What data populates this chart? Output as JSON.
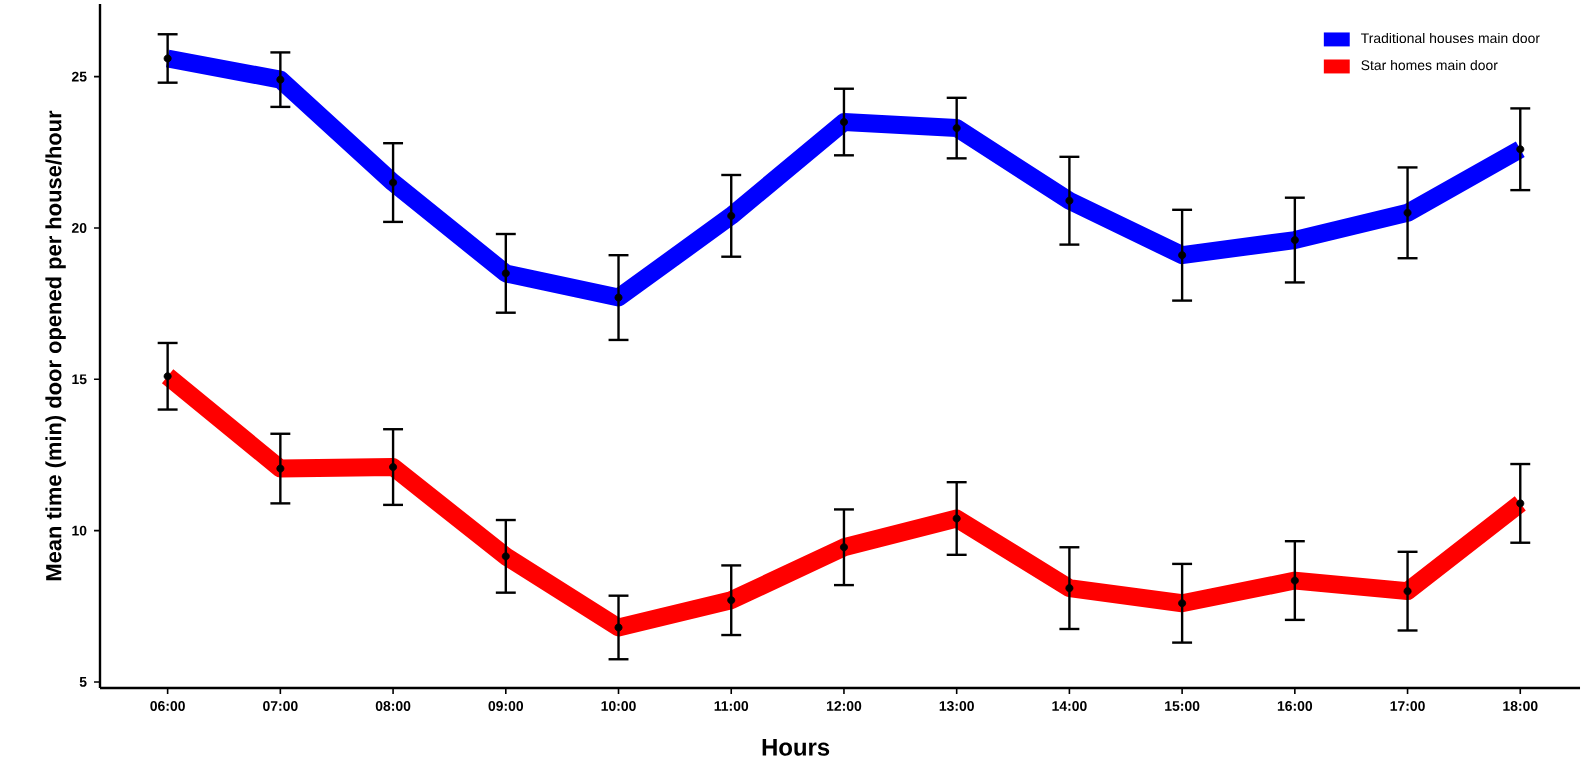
{
  "chart_data": {
    "type": "line",
    "xlabel": "Hours",
    "ylabel": "Mean time (min) door opened per house/hour",
    "categories": [
      "06:00",
      "07:00",
      "08:00",
      "09:00",
      "10:00",
      "11:00",
      "12:00",
      "13:00",
      "14:00",
      "15:00",
      "16:00",
      "17:00",
      "18:00"
    ],
    "series": [
      {
        "name": "Traditional houses main door",
        "color": "#0000ff",
        "values": [
          25.6,
          24.9,
          21.5,
          18.5,
          17.7,
          20.4,
          23.5,
          23.3,
          20.9,
          19.1,
          19.6,
          20.5,
          22.6
        ],
        "errors": [
          0.8,
          0.9,
          1.3,
          1.3,
          1.4,
          1.35,
          1.1,
          1.0,
          1.45,
          1.5,
          1.4,
          1.5,
          1.35
        ]
      },
      {
        "name": "Star homes main door",
        "color": "#ff0000",
        "values": [
          15.1,
          12.05,
          12.1,
          9.15,
          6.8,
          7.7,
          9.45,
          10.4,
          8.1,
          7.6,
          8.35,
          8.0,
          10.9
        ],
        "errors": [
          1.1,
          1.15,
          1.25,
          1.2,
          1.05,
          1.15,
          1.25,
          1.2,
          1.35,
          1.3,
          1.3,
          1.3,
          1.3
        ]
      }
    ],
    "ylim": [
      4.8,
      27.4
    ],
    "yticks": [
      5,
      10,
      15,
      20,
      25
    ],
    "grid": false,
    "legend": "top right",
    "marker": "circle",
    "line_style": "solid"
  }
}
